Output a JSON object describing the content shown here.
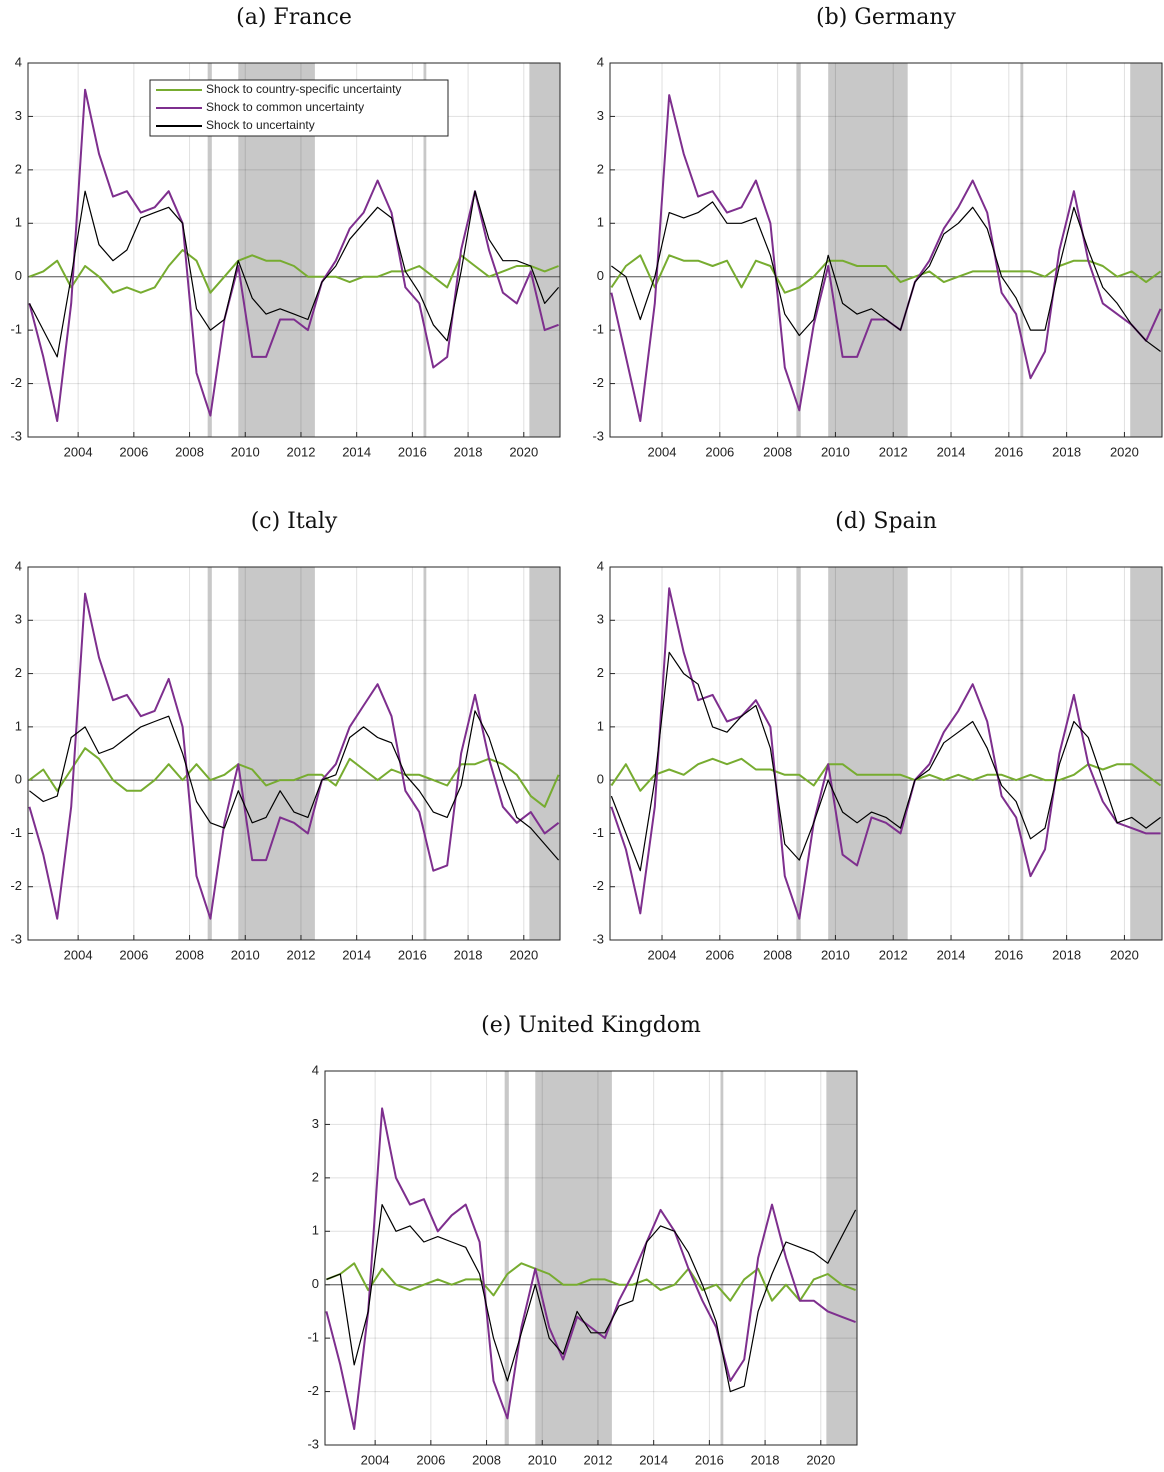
{
  "chart_data": [
    {
      "type": "line",
      "title": "(a) France",
      "legend": "upper center",
      "x": [
        2002.25,
        2002.75,
        2003.25,
        2003.75,
        2004.25,
        2004.75,
        2005.25,
        2005.75,
        2006.25,
        2006.75,
        2007.25,
        2007.75,
        2008.25,
        2008.75,
        2009.25,
        2009.75,
        2010.25,
        2010.75,
        2011.25,
        2011.75,
        2012.25,
        2012.75,
        2013.25,
        2013.75,
        2014.25,
        2014.75,
        2015.25,
        2015.75,
        2016.25,
        2016.75,
        2017.25,
        2017.75,
        2018.25,
        2018.75,
        2019.25,
        2019.75,
        2020.25,
        2020.75,
        2021.25
      ],
      "xlim": [
        2002.2,
        2021.3
      ],
      "xticks": [
        2004,
        2006,
        2008,
        2010,
        2012,
        2014,
        2016,
        2018,
        2020
      ],
      "ylim": [
        -3,
        4
      ],
      "yticks": [
        -3,
        -2,
        -1,
        0,
        1,
        2,
        3,
        4
      ],
      "grid": true,
      "reference_line": 0,
      "shaded_regions": [
        [
          2008.65,
          2008.8
        ],
        [
          2009.75,
          2012.5
        ],
        [
          2016.4,
          2016.5
        ],
        [
          2020.2,
          2021.3
        ]
      ],
      "series": [
        {
          "name": "Shock to country-specific uncertainty",
          "color": "#77ac30",
          "values": [
            0.0,
            0.1,
            0.3,
            -0.2,
            0.2,
            0.0,
            -0.3,
            -0.2,
            -0.3,
            -0.2,
            0.2,
            0.5,
            0.3,
            -0.3,
            0.0,
            0.3,
            0.4,
            0.3,
            0.3,
            0.2,
            0.0,
            0.0,
            0.0,
            -0.1,
            0.0,
            0.0,
            0.1,
            0.1,
            0.2,
            0.0,
            -0.2,
            0.4,
            0.2,
            0.0,
            0.1,
            0.2,
            0.2,
            0.1,
            0.2
          ]
        },
        {
          "name": "Shock to common uncertainty",
          "color": "#7e2f8e",
          "values": [
            -0.5,
            -1.5,
            -2.7,
            -0.5,
            3.5,
            2.3,
            1.5,
            1.6,
            1.2,
            1.3,
            1.6,
            1.0,
            -1.8,
            -2.6,
            -0.8,
            0.2,
            -1.5,
            -1.5,
            -0.8,
            -0.8,
            -1.0,
            -0.1,
            0.3,
            0.9,
            1.2,
            1.8,
            1.2,
            -0.2,
            -0.5,
            -1.7,
            -1.5,
            0.5,
            1.6,
            0.5,
            -0.3,
            -0.5,
            0.1,
            -1.0,
            -0.9
          ]
        },
        {
          "name": "Shock to uncertainty",
          "color": "#000000",
          "values": [
            -0.5,
            -1.0,
            -1.5,
            0.0,
            1.6,
            0.6,
            0.3,
            0.5,
            1.1,
            1.2,
            1.3,
            1.0,
            -0.6,
            -1.0,
            -0.8,
            0.3,
            -0.4,
            -0.7,
            -0.6,
            -0.7,
            -0.8,
            -0.1,
            0.2,
            0.7,
            1.0,
            1.3,
            1.1,
            0.1,
            -0.3,
            -0.9,
            -1.2,
            0.1,
            1.6,
            0.7,
            0.3,
            0.3,
            0.2,
            -0.5,
            -0.2
          ]
        }
      ]
    },
    {
      "type": "line",
      "title": "(b) Germany",
      "x": [
        2002.25,
        2002.75,
        2003.25,
        2003.75,
        2004.25,
        2004.75,
        2005.25,
        2005.75,
        2006.25,
        2006.75,
        2007.25,
        2007.75,
        2008.25,
        2008.75,
        2009.25,
        2009.75,
        2010.25,
        2010.75,
        2011.25,
        2011.75,
        2012.25,
        2012.75,
        2013.25,
        2013.75,
        2014.25,
        2014.75,
        2015.25,
        2015.75,
        2016.25,
        2016.75,
        2017.25,
        2017.75,
        2018.25,
        2018.75,
        2019.25,
        2019.75,
        2020.25,
        2020.75,
        2021.25
      ],
      "xlim": [
        2002.2,
        2021.3
      ],
      "xticks": [
        2004,
        2006,
        2008,
        2010,
        2012,
        2014,
        2016,
        2018,
        2020
      ],
      "ylim": [
        -3,
        4
      ],
      "yticks": [
        -3,
        -2,
        -1,
        0,
        1,
        2,
        3,
        4
      ],
      "grid": true,
      "reference_line": 0,
      "shaded_regions": [
        [
          2008.65,
          2008.8
        ],
        [
          2009.75,
          2012.5
        ],
        [
          2016.4,
          2016.5
        ],
        [
          2020.2,
          2021.3
        ]
      ],
      "series": [
        {
          "color": "#77ac30",
          "values": [
            -0.2,
            0.2,
            0.4,
            -0.2,
            0.4,
            0.3,
            0.3,
            0.2,
            0.3,
            -0.2,
            0.3,
            0.2,
            -0.3,
            -0.2,
            0.0,
            0.3,
            0.3,
            0.2,
            0.2,
            0.2,
            -0.1,
            0.0,
            0.1,
            -0.1,
            0.0,
            0.1,
            0.1,
            0.1,
            0.1,
            0.1,
            0.0,
            0.2,
            0.3,
            0.3,
            0.2,
            0.0,
            0.1,
            -0.1,
            0.1
          ]
        },
        {
          "color": "#7e2f8e",
          "values": [
            -0.3,
            -1.5,
            -2.7,
            -0.5,
            3.4,
            2.3,
            1.5,
            1.6,
            1.2,
            1.3,
            1.8,
            1.0,
            -1.7,
            -2.5,
            -0.9,
            0.2,
            -1.5,
            -1.5,
            -0.8,
            -0.8,
            -1.0,
            -0.1,
            0.3,
            0.9,
            1.3,
            1.8,
            1.2,
            -0.3,
            -0.7,
            -1.9,
            -1.4,
            0.5,
            1.6,
            0.3,
            -0.5,
            -0.7,
            -0.9,
            -1.2,
            -0.6
          ]
        },
        {
          "color": "#000000",
          "values": [
            0.2,
            0.0,
            -0.8,
            0.0,
            1.2,
            1.1,
            1.2,
            1.4,
            1.0,
            1.0,
            1.1,
            0.4,
            -0.7,
            -1.1,
            -0.8,
            0.4,
            -0.5,
            -0.7,
            -0.6,
            -0.8,
            -1.0,
            -0.1,
            0.2,
            0.8,
            1.0,
            1.3,
            0.9,
            0.0,
            -0.4,
            -1.0,
            -1.0,
            0.2,
            1.3,
            0.5,
            -0.2,
            -0.5,
            -0.9,
            -1.2,
            -1.4
          ]
        }
      ]
    },
    {
      "type": "line",
      "title": "(c) Italy",
      "x": [
        2002.25,
        2002.75,
        2003.25,
        2003.75,
        2004.25,
        2004.75,
        2005.25,
        2005.75,
        2006.25,
        2006.75,
        2007.25,
        2007.75,
        2008.25,
        2008.75,
        2009.25,
        2009.75,
        2010.25,
        2010.75,
        2011.25,
        2011.75,
        2012.25,
        2012.75,
        2013.25,
        2013.75,
        2014.25,
        2014.75,
        2015.25,
        2015.75,
        2016.25,
        2016.75,
        2017.25,
        2017.75,
        2018.25,
        2018.75,
        2019.25,
        2019.75,
        2020.25,
        2020.75,
        2021.25
      ],
      "xlim": [
        2002.2,
        2021.3
      ],
      "xticks": [
        2004,
        2006,
        2008,
        2010,
        2012,
        2014,
        2016,
        2018,
        2020
      ],
      "ylim": [
        -3,
        4
      ],
      "yticks": [
        -3,
        -2,
        -1,
        0,
        1,
        2,
        3,
        4
      ],
      "grid": true,
      "reference_line": 0,
      "shaded_regions": [
        [
          2008.65,
          2008.8
        ],
        [
          2009.75,
          2012.5
        ],
        [
          2016.4,
          2016.5
        ],
        [
          2020.2,
          2021.3
        ]
      ],
      "series": [
        {
          "color": "#77ac30",
          "values": [
            0.0,
            0.2,
            -0.2,
            0.2,
            0.6,
            0.4,
            0.0,
            -0.2,
            -0.2,
            0.0,
            0.3,
            0.0,
            0.3,
            0.0,
            0.1,
            0.3,
            0.2,
            -0.1,
            0.0,
            0.0,
            0.1,
            0.1,
            -0.1,
            0.4,
            0.2,
            0.0,
            0.2,
            0.1,
            0.1,
            0.0,
            -0.1,
            0.3,
            0.3,
            0.4,
            0.3,
            0.1,
            -0.3,
            -0.5,
            0.1
          ]
        },
        {
          "color": "#7e2f8e",
          "values": [
            -0.5,
            -1.4,
            -2.6,
            -0.5,
            3.5,
            2.3,
            1.5,
            1.6,
            1.2,
            1.3,
            1.9,
            1.0,
            -1.8,
            -2.6,
            -0.8,
            0.3,
            -1.5,
            -1.5,
            -0.7,
            -0.8,
            -1.0,
            0.0,
            0.3,
            1.0,
            1.4,
            1.8,
            1.2,
            -0.2,
            -0.6,
            -1.7,
            -1.6,
            0.5,
            1.6,
            0.4,
            -0.5,
            -0.8,
            -0.6,
            -1.0,
            -0.8
          ]
        },
        {
          "color": "#000000",
          "values": [
            -0.2,
            -0.4,
            -0.3,
            0.8,
            1.0,
            0.5,
            0.6,
            0.8,
            1.0,
            1.1,
            1.2,
            0.5,
            -0.4,
            -0.8,
            -0.9,
            -0.2,
            -0.8,
            -0.7,
            -0.2,
            -0.6,
            -0.7,
            0.0,
            0.1,
            0.8,
            1.0,
            0.8,
            0.7,
            0.1,
            -0.2,
            -0.6,
            -0.7,
            -0.1,
            1.3,
            0.8,
            0.0,
            -0.7,
            -0.9,
            -1.2,
            -1.5
          ]
        }
      ]
    },
    {
      "type": "line",
      "title": "(d) Spain",
      "x": [
        2002.25,
        2002.75,
        2003.25,
        2003.75,
        2004.25,
        2004.75,
        2005.25,
        2005.75,
        2006.25,
        2006.75,
        2007.25,
        2007.75,
        2008.25,
        2008.75,
        2009.25,
        2009.75,
        2010.25,
        2010.75,
        2011.25,
        2011.75,
        2012.25,
        2012.75,
        2013.25,
        2013.75,
        2014.25,
        2014.75,
        2015.25,
        2015.75,
        2016.25,
        2016.75,
        2017.25,
        2017.75,
        2018.25,
        2018.75,
        2019.25,
        2019.75,
        2020.25,
        2020.75,
        2021.25
      ],
      "xlim": [
        2002.2,
        2021.3
      ],
      "xticks": [
        2004,
        2006,
        2008,
        2010,
        2012,
        2014,
        2016,
        2018,
        2020
      ],
      "ylim": [
        -3,
        4
      ],
      "yticks": [
        -3,
        -2,
        -1,
        0,
        1,
        2,
        3,
        4
      ],
      "grid": true,
      "reference_line": 0,
      "shaded_regions": [
        [
          2008.65,
          2008.8
        ],
        [
          2009.75,
          2012.5
        ],
        [
          2016.4,
          2016.5
        ],
        [
          2020.2,
          2021.3
        ]
      ],
      "series": [
        {
          "color": "#77ac30",
          "values": [
            -0.1,
            0.3,
            -0.2,
            0.1,
            0.2,
            0.1,
            0.3,
            0.4,
            0.3,
            0.4,
            0.2,
            0.2,
            0.1,
            0.1,
            -0.1,
            0.3,
            0.3,
            0.1,
            0.1,
            0.1,
            0.1,
            0.0,
            0.1,
            0.0,
            0.1,
            0.0,
            0.1,
            0.1,
            0.0,
            0.1,
            0.0,
            0.0,
            0.1,
            0.3,
            0.2,
            0.3,
            0.3,
            0.1,
            -0.1
          ]
        },
        {
          "color": "#7e2f8e",
          "values": [
            -0.5,
            -1.3,
            -2.5,
            -0.5,
            3.6,
            2.4,
            1.5,
            1.6,
            1.1,
            1.2,
            1.5,
            1.0,
            -1.8,
            -2.6,
            -0.8,
            0.3,
            -1.4,
            -1.6,
            -0.7,
            -0.8,
            -1.0,
            0.0,
            0.3,
            0.9,
            1.3,
            1.8,
            1.1,
            -0.3,
            -0.7,
            -1.8,
            -1.3,
            0.5,
            1.6,
            0.3,
            -0.4,
            -0.8,
            -0.9,
            -1.0,
            -1.0
          ]
        },
        {
          "color": "#000000",
          "values": [
            -0.3,
            -1.0,
            -1.7,
            0.0,
            2.4,
            2.0,
            1.8,
            1.0,
            0.9,
            1.2,
            1.4,
            0.6,
            -1.2,
            -1.5,
            -0.8,
            0.0,
            -0.6,
            -0.8,
            -0.6,
            -0.7,
            -0.9,
            0.0,
            0.2,
            0.7,
            0.9,
            1.1,
            0.6,
            -0.1,
            -0.4,
            -1.1,
            -0.9,
            0.3,
            1.1,
            0.8,
            0.0,
            -0.8,
            -0.7,
            -0.9,
            -0.7
          ]
        }
      ]
    },
    {
      "type": "line",
      "title": "(e) United Kingdom",
      "x": [
        2002.25,
        2002.75,
        2003.25,
        2003.75,
        2004.25,
        2004.75,
        2005.25,
        2005.75,
        2006.25,
        2006.75,
        2007.25,
        2007.75,
        2008.25,
        2008.75,
        2009.25,
        2009.75,
        2010.25,
        2010.75,
        2011.25,
        2011.75,
        2012.25,
        2012.75,
        2013.25,
        2013.75,
        2014.25,
        2014.75,
        2015.25,
        2015.75,
        2016.25,
        2016.75,
        2017.25,
        2017.75,
        2018.25,
        2018.75,
        2019.25,
        2019.75,
        2020.25,
        2020.75,
        2021.25
      ],
      "xlim": [
        2002.2,
        2021.3
      ],
      "xticks": [
        2004,
        2006,
        2008,
        2010,
        2012,
        2014,
        2016,
        2018,
        2020
      ],
      "ylim": [
        -3,
        4
      ],
      "yticks": [
        -3,
        -2,
        -1,
        0,
        1,
        2,
        3,
        4
      ],
      "grid": true,
      "reference_line": 0,
      "shaded_regions": [
        [
          2008.65,
          2008.8
        ],
        [
          2009.75,
          2012.5
        ],
        [
          2016.4,
          2016.5
        ],
        [
          2020.2,
          2021.3
        ]
      ],
      "series": [
        {
          "color": "#77ac30",
          "values": [
            0.1,
            0.2,
            0.4,
            -0.1,
            0.3,
            0.0,
            -0.1,
            0.0,
            0.1,
            0.0,
            0.1,
            0.1,
            -0.2,
            0.2,
            0.4,
            0.3,
            0.2,
            0.0,
            0.0,
            0.1,
            0.1,
            0.0,
            0.0,
            0.1,
            -0.1,
            0.0,
            0.3,
            -0.1,
            0.0,
            -0.3,
            0.1,
            0.3,
            -0.3,
            0.0,
            -0.3,
            0.1,
            0.2,
            0.0,
            -0.1
          ]
        },
        {
          "color": "#7e2f8e",
          "values": [
            -0.5,
            -1.5,
            -2.7,
            -0.5,
            3.3,
            2.0,
            1.5,
            1.6,
            1.0,
            1.3,
            1.5,
            0.8,
            -1.8,
            -2.5,
            -0.8,
            0.3,
            -0.8,
            -1.4,
            -0.6,
            -0.8,
            -1.0,
            -0.3,
            0.2,
            0.8,
            1.4,
            1.0,
            0.3,
            -0.3,
            -0.8,
            -1.8,
            -1.4,
            0.5,
            1.5,
            0.5,
            -0.3,
            -0.3,
            -0.5,
            -0.6,
            -0.7
          ]
        },
        {
          "color": "#000000",
          "values": [
            0.1,
            0.2,
            -1.5,
            -0.5,
            1.5,
            1.0,
            1.1,
            0.8,
            0.9,
            0.8,
            0.7,
            0.2,
            -1.0,
            -1.8,
            -0.9,
            0.0,
            -1.0,
            -1.3,
            -0.5,
            -0.9,
            -0.9,
            -0.4,
            -0.3,
            0.8,
            1.1,
            1.0,
            0.6,
            0.0,
            -0.7,
            -2.0,
            -1.9,
            -0.5,
            0.2,
            0.8,
            0.7,
            0.6,
            0.4,
            0.9,
            1.4
          ]
        }
      ]
    }
  ]
}
